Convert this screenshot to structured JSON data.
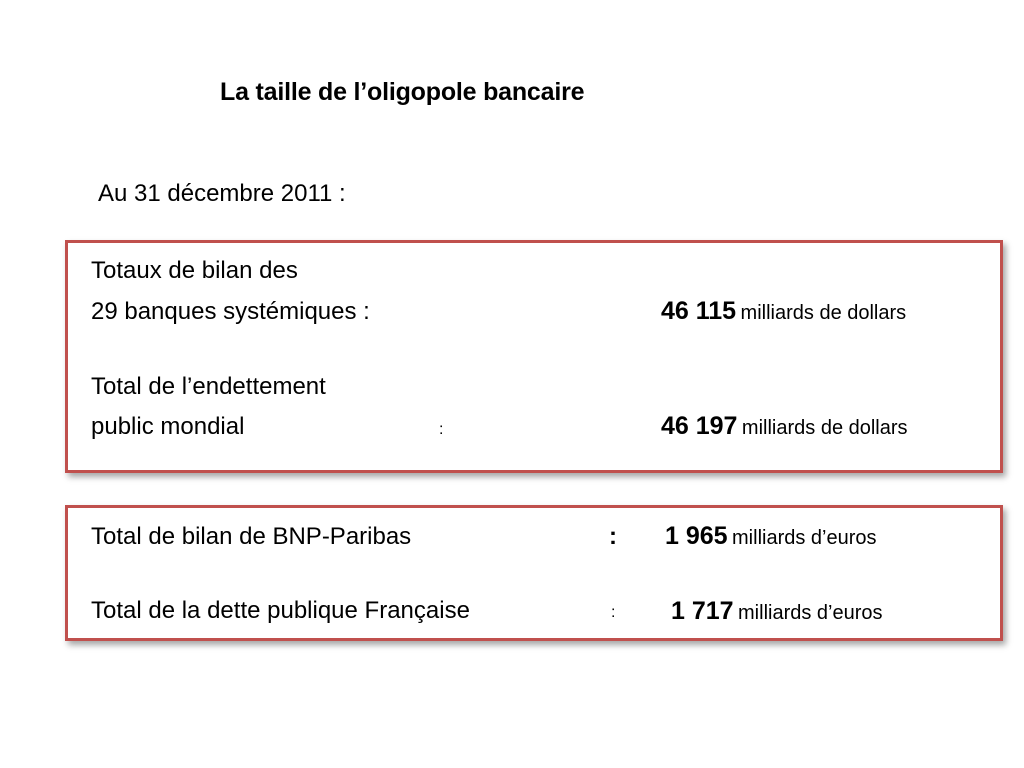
{
  "slide": {
    "title": "La taille de l’oligopole bancaire",
    "date_line": "Au 31 décembre 2011 :",
    "box1": {
      "row1": {
        "label_line1": "Totaux de bilan des",
        "label_line2": "29 banques systémiques :",
        "value": "46 115",
        "unit": "milliards de dollars"
      },
      "row2": {
        "label_line1": "Total de l’endettement",
        "label_line2": "public mondial",
        "colon": ":",
        "value": "46 197",
        "unit": "milliards de dollars"
      }
    },
    "box2": {
      "row1": {
        "label": "Total de bilan de BNP-Paribas",
        "colon": ":",
        "value": "1 965",
        "unit": "milliards d’euros"
      },
      "row2": {
        "label": "Total de la dette publique Française",
        "colon": ":",
        "value": "1 717",
        "unit": "milliards d’euros"
      }
    },
    "colors": {
      "box_border": "#c0504d",
      "text": "#000000",
      "background": "#ffffff"
    }
  }
}
